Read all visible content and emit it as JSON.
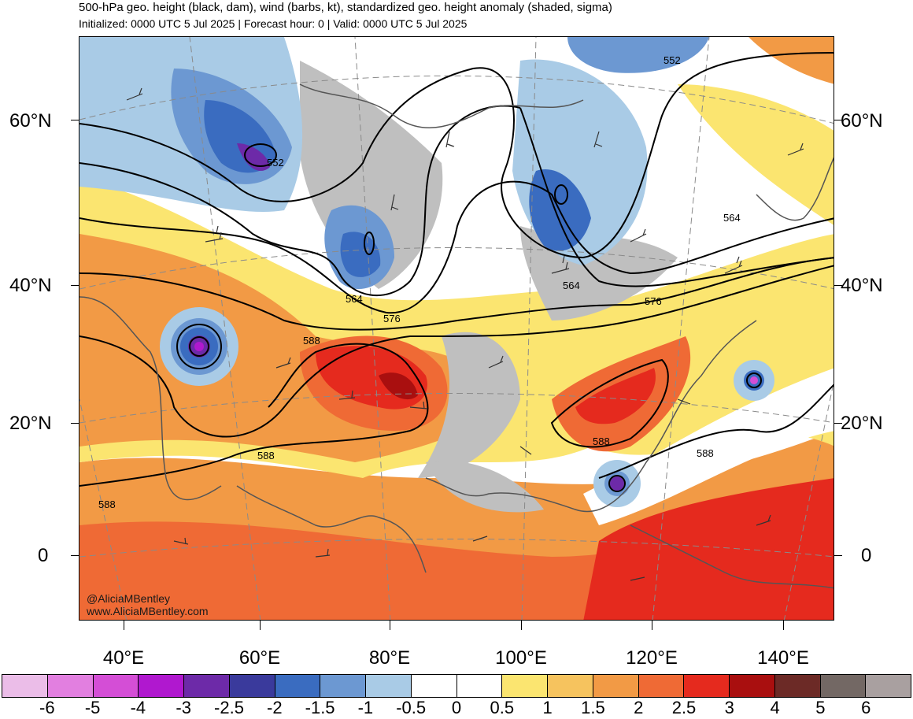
{
  "header": {
    "title": "500-hPa geo. height (black, dam), wind (barbs, kt), standardized geo. height anomaly (shaded, sigma)",
    "subtitle": "Initialized: 0000 UTC 5 Jul 2025 | Forecast hour: 0 | Valid: 0000 UTC 5 Jul 2025"
  },
  "map": {
    "lat_labels": [
      "60°N",
      "40°N",
      "20°N",
      "0"
    ],
    "lon_labels": [
      "40°E",
      "60°E",
      "80°E",
      "100°E",
      "120°E",
      "140°E"
    ],
    "contour_labels": [
      "552",
      "552",
      "564",
      "564",
      "564",
      "576",
      "576",
      "588",
      "588",
      "588",
      "588",
      "588"
    ],
    "credit_handle": "@AliciaMBentley",
    "credit_site": "www.AliciaMBentley.com"
  },
  "colorbar": {
    "colors": [
      "#ebbde8",
      "#e27fe0",
      "#d44ed6",
      "#b018cf",
      "#6d2aa8",
      "#3a3a9c",
      "#3a6cc0",
      "#6c98d2",
      "#a9cbe6",
      "#ffffff",
      "#ffffff",
      "#fbe570",
      "#f6c35e",
      "#f29a45",
      "#ef6a35",
      "#e52a1e",
      "#a90f0f",
      "#6c2a26",
      "#736864",
      "#a9a0a0"
    ],
    "labels": [
      "-6",
      "-5",
      "-4",
      "-3",
      "-2.5",
      "-2",
      "-1.5",
      "-1",
      "-0.5",
      "0",
      "0.5",
      "1",
      "1.5",
      "2",
      "2.5",
      "3",
      "4",
      "5",
      "6"
    ]
  }
}
